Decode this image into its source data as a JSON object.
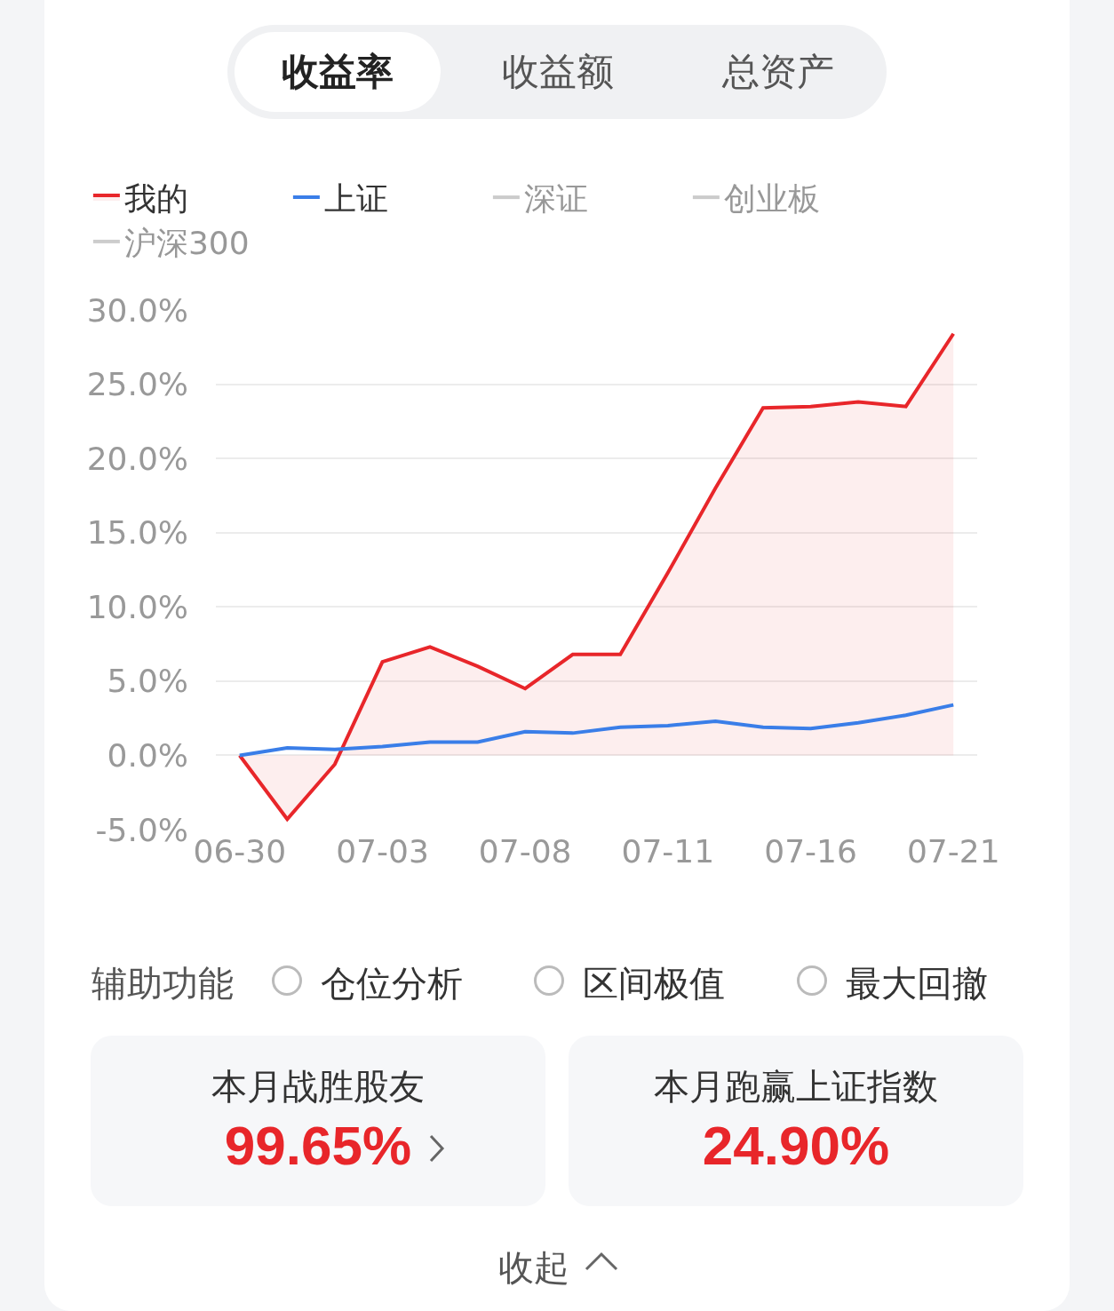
{
  "chart_data": {
    "type": "line",
    "categories": [
      "06-30",
      null,
      null,
      "07-03",
      null,
      null,
      "07-08",
      null,
      null,
      "07-11",
      null,
      null,
      "07-16",
      null,
      null,
      "07-21"
    ],
    "series": [
      {
        "name": "我的",
        "type": "area",
        "color": "#e8262a",
        "values": [
          0,
          -4.3,
          -0.6,
          6.3,
          7.3,
          6.0,
          4.5,
          6.8,
          6.8,
          12.3,
          18.0,
          23.4,
          23.5,
          23.8,
          23.5,
          28.4
        ]
      },
      {
        "name": "上证",
        "type": "line",
        "color": "#3a7ee8",
        "values": [
          0,
          0.5,
          0.4,
          0.6,
          0.9,
          0.9,
          1.6,
          1.5,
          1.9,
          2.0,
          2.3,
          1.9,
          1.8,
          2.2,
          2.7,
          3.4
        ]
      },
      {
        "name": "深证",
        "color": "#999999",
        "values": [
          null,
          null,
          null,
          null,
          null,
          null,
          null,
          null,
          null,
          null,
          null,
          null,
          null,
          null,
          null,
          null
        ]
      },
      {
        "name": "创业板",
        "color": "#999999",
        "values": [
          null,
          null,
          null,
          null,
          null,
          null,
          null,
          null,
          null,
          null,
          null,
          null,
          null,
          null,
          null,
          null
        ]
      },
      {
        "name": "沪深300",
        "color": "#999999",
        "values": [
          null,
          null,
          null,
          null,
          null,
          null,
          null,
          null,
          null,
          null,
          null,
          null,
          null,
          null,
          null,
          null
        ]
      }
    ],
    "ylim": [
      -5,
      30
    ],
    "yticks": [
      {
        "value": -5,
        "label": "-5.0%"
      },
      {
        "value": 0,
        "label": "0.0%"
      },
      {
        "value": 5,
        "label": "5.0%"
      },
      {
        "value": 10,
        "label": "10.0%"
      },
      {
        "value": 15,
        "label": "15.0%"
      },
      {
        "value": 20,
        "label": "20.0%"
      },
      {
        "value": 25,
        "label": "25.0%"
      },
      {
        "value": 30,
        "label": "30.0%"
      }
    ],
    "grid": "y",
    "legend": "top",
    "marker": "none",
    "line_style": "solid",
    "annotations": [
      "收益率",
      "收益额",
      "总资产",
      "辅助功能",
      "仓位分析",
      "区间极值",
      "最大回撤",
      "本月战胜股友",
      "99.65%",
      "本月跑赢上证指数",
      "24.90%",
      "收起"
    ]
  }
}
